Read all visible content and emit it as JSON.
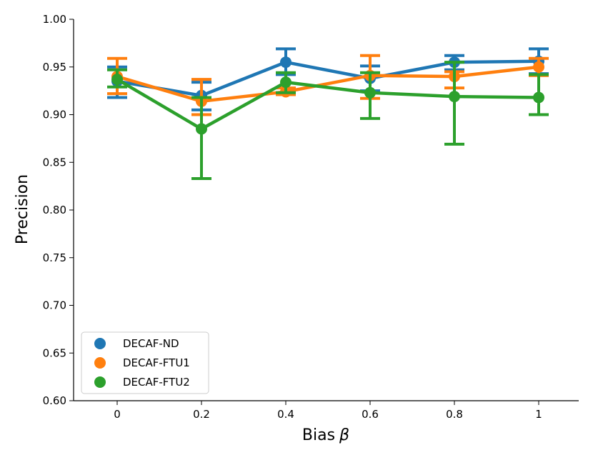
{
  "chart_data": {
    "type": "line",
    "x": [
      "0",
      "0.2",
      "0.4",
      "0.6",
      "0.8",
      "1"
    ],
    "xlabel": "Bias",
    "xlabel_symbol": "β",
    "ylabel": "Precision",
    "ylim": [
      0.6,
      1.0
    ],
    "yticks": [
      "0.60",
      "0.65",
      "0.70",
      "0.75",
      "0.80",
      "0.85",
      "0.90",
      "0.95",
      "1.00"
    ],
    "grid": false,
    "legend_position": "lower-left",
    "series": [
      {
        "name": "DECAF-ND",
        "color": "#1f77b4",
        "values": [
          0.935,
          0.92,
          0.955,
          0.938,
          0.955,
          0.956
        ],
        "err_low": [
          0.918,
          0.905,
          0.942,
          0.925,
          0.947,
          0.943
        ],
        "err_high": [
          0.95,
          0.934,
          0.969,
          0.951,
          0.962,
          0.969
        ]
      },
      {
        "name": "DECAF-FTU1",
        "color": "#ff7f0e",
        "values": [
          0.94,
          0.914,
          0.924,
          0.941,
          0.94,
          0.95
        ],
        "err_low": [
          0.922,
          0.9,
          0.921,
          0.917,
          0.928,
          0.941
        ],
        "err_high": [
          0.959,
          0.937,
          0.928,
          0.962,
          0.945,
          0.959
        ]
      },
      {
        "name": "DECAF-FTU2",
        "color": "#2ca02c",
        "values": [
          0.937,
          0.885,
          0.934,
          0.923,
          0.919,
          0.918
        ],
        "err_low": [
          0.929,
          0.833,
          0.923,
          0.896,
          0.869,
          0.9
        ],
        "err_high": [
          0.947,
          0.918,
          0.944,
          0.944,
          0.955,
          0.942
        ]
      }
    ]
  }
}
